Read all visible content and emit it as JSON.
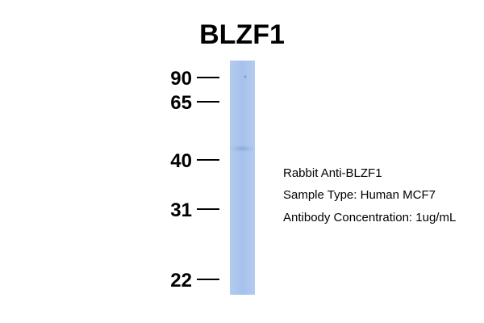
{
  "title": "BLZF1",
  "markers": [
    "90",
    "65",
    "40",
    "31",
    "22"
  ],
  "info": [
    "Rabbit Anti-BLZF1",
    "Sample Type: Human MCF7",
    "Antibody Concentration: 1ug/mL"
  ]
}
